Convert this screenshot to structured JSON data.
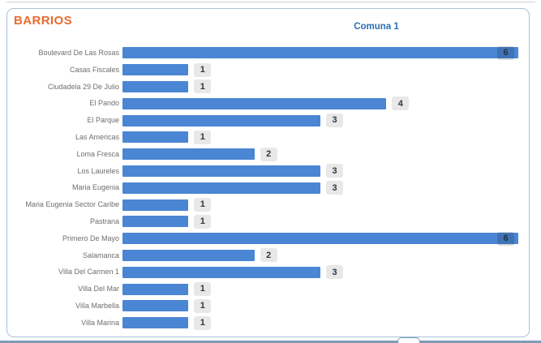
{
  "page_title": "BARRIOS",
  "header": {
    "chart_header": "Comuna 1"
  },
  "colors": {
    "bar_blue": "#4a86d3",
    "title_orange": "#e96b2e",
    "header_blue": "#2c6fb7",
    "badge_bg": "#e8e8e8",
    "badge_text": "#2f3845",
    "label_gray": "#6e6e6e",
    "panel_border": "#a9c0d4"
  },
  "chart_data": {
    "type": "bar",
    "orientation": "horizontal",
    "title": "Comuna 1",
    "xlabel": "",
    "ylabel": "",
    "xlim": [
      0,
      6
    ],
    "grid": false,
    "legend": false,
    "value_labels": true,
    "categories": [
      "Boulevard De Las Rosas",
      "Casas Fiscales",
      "Ciudadela 29 De Julio",
      "El Pando",
      "El Parque",
      "Las Americas",
      "Loma Fresca",
      "Los Laureles",
      "Maria Eugenia",
      "Maria Eugenia Sector Caribe",
      "Pastrana",
      "Primero De Mayo",
      "Salamanca",
      "Villa Del Carmen 1",
      "Villa Del Mar",
      "Villa Marbella",
      "Villa Marina"
    ],
    "values": [
      6,
      1,
      1,
      4,
      3,
      1,
      2,
      3,
      3,
      1,
      1,
      6,
      2,
      3,
      1,
      1,
      1
    ]
  }
}
